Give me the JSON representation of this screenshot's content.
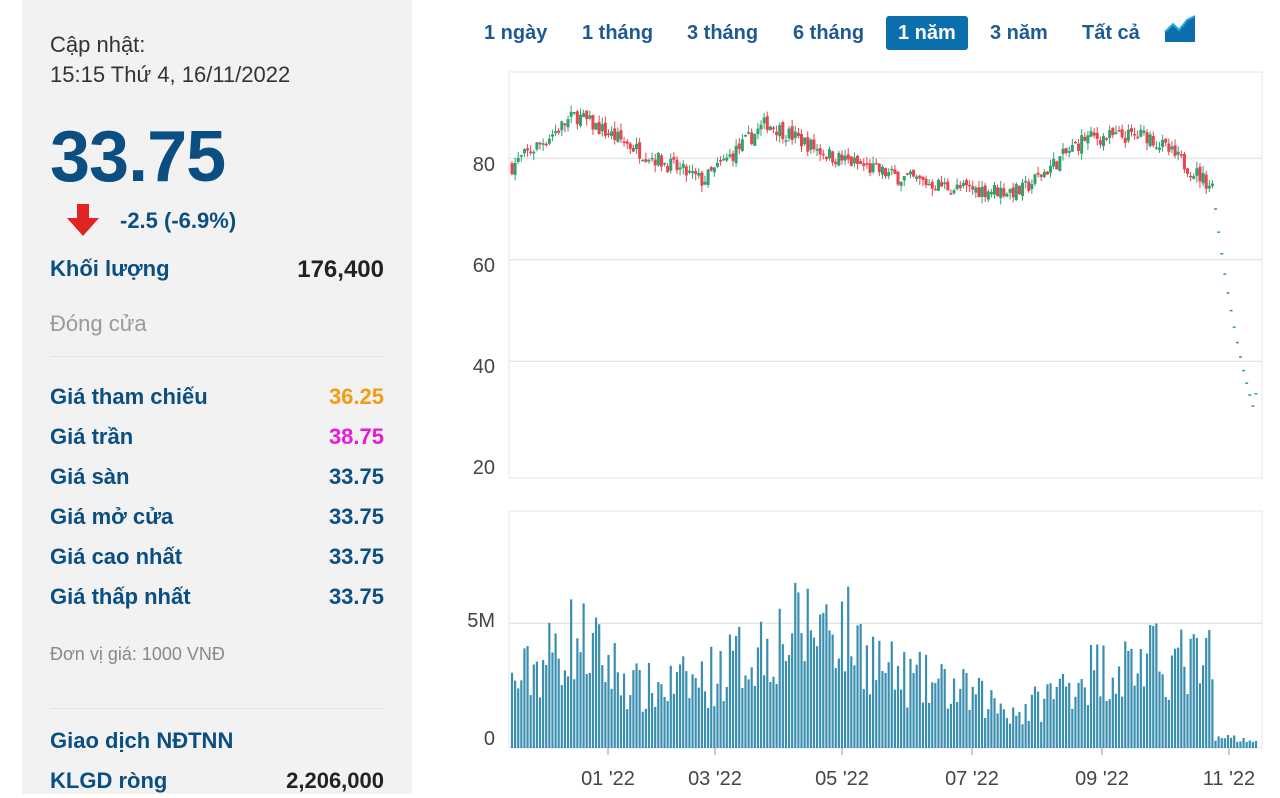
{
  "summary": {
    "update_label": "Cập nhật:",
    "update_time": "15:15 Thứ 4, 16/11/2022",
    "price": "33.75",
    "change": "-2.5 (-6.9%)",
    "volume_label": "Khối lượng",
    "volume_value": "176,400",
    "close_label": "Đóng cửa",
    "unit_note": "Đơn vị giá: 1000 VNĐ"
  },
  "price_rows": [
    {
      "label": "Giá tham chiếu",
      "value": "36.25",
      "color": "#f39c12"
    },
    {
      "label": "Giá trần",
      "value": "38.75",
      "color": "#e81ad6"
    },
    {
      "label": "Giá sàn",
      "value": "33.75",
      "color": "#0b4f82"
    },
    {
      "label": "Giá mở cửa",
      "value": "33.75",
      "color": "#0b4f82"
    },
    {
      "label": "Giá cao nhất",
      "value": "33.75",
      "color": "#0b4f82"
    },
    {
      "label": "Giá thấp nhất",
      "value": "33.75",
      "color": "#0b4f82"
    }
  ],
  "foreign": {
    "title": "Giao dịch NĐTNN",
    "net_label": "KLGD ròng",
    "net_value": "2,206,000"
  },
  "range_tabs": [
    {
      "label": "1 ngày",
      "active": false
    },
    {
      "label": "1 tháng",
      "active": false
    },
    {
      "label": "3 tháng",
      "active": false
    },
    {
      "label": "6 tháng",
      "active": false
    },
    {
      "label": "1 năm",
      "active": true
    },
    {
      "label": "3 năm",
      "active": false
    },
    {
      "label": "Tất cả",
      "active": false
    }
  ],
  "chart_type_icon": "area-chart-icon",
  "colors": {
    "up": "#2ea36f",
    "down": "#e8434f",
    "volume": "#3a8fb0",
    "accent": "#0b6fae"
  },
  "chart_data": {
    "type": "candlestick",
    "period": "1 năm",
    "x_ticks": [
      "01 '22",
      "03 '22",
      "05 '22",
      "07 '22",
      "09 '22",
      "11 '22"
    ],
    "price_axis": {
      "ticks": [
        "80",
        "60",
        "40",
        "20"
      ],
      "ylim": [
        17,
        97
      ]
    },
    "volume_axis": {
      "ticks": [
        "5M",
        "0"
      ],
      "ylim": [
        0,
        9500000
      ]
    },
    "close_by_month": [
      {
        "month": "11/2021",
        "close": 78.5
      },
      {
        "month": "12/2021",
        "close": 88.5
      },
      {
        "month": "01/2022",
        "close": 81.5
      },
      {
        "month": "02/2022",
        "close": 75.5
      },
      {
        "month": "03/2022",
        "close": 87.0
      },
      {
        "month": "04/2022",
        "close": 80.5
      },
      {
        "month": "05/2022",
        "close": 76.5
      },
      {
        "month": "06/2022",
        "close": 74.0
      },
      {
        "month": "07/2022",
        "close": 73.5
      },
      {
        "month": "08/2022",
        "close": 84.0
      },
      {
        "month": "09/2022",
        "close": 84.5
      },
      {
        "month": "10/2022",
        "close": 74.5
      },
      {
        "month": "11/2022",
        "close": 33.75
      }
    ],
    "volume_by_month": [
      {
        "month": "11/2021",
        "volume": 2500000
      },
      {
        "month": "12/2021",
        "volume": 4500000
      },
      {
        "month": "01/2022",
        "volume": 2300000
      },
      {
        "month": "02/2022",
        "volume": 2700000
      },
      {
        "month": "03/2022",
        "volume": 4200000
      },
      {
        "month": "04/2022",
        "volume": 5200000
      },
      {
        "month": "05/2022",
        "volume": 2900000
      },
      {
        "month": "06/2022",
        "volume": 2300000
      },
      {
        "month": "07/2022",
        "volume": 1400000
      },
      {
        "month": "08/2022",
        "volume": 3000000
      },
      {
        "month": "09/2022",
        "volume": 3500000
      },
      {
        "month": "10/2022",
        "volume": 3300000
      },
      {
        "month": "11/2022",
        "volume": 700000
      }
    ]
  }
}
